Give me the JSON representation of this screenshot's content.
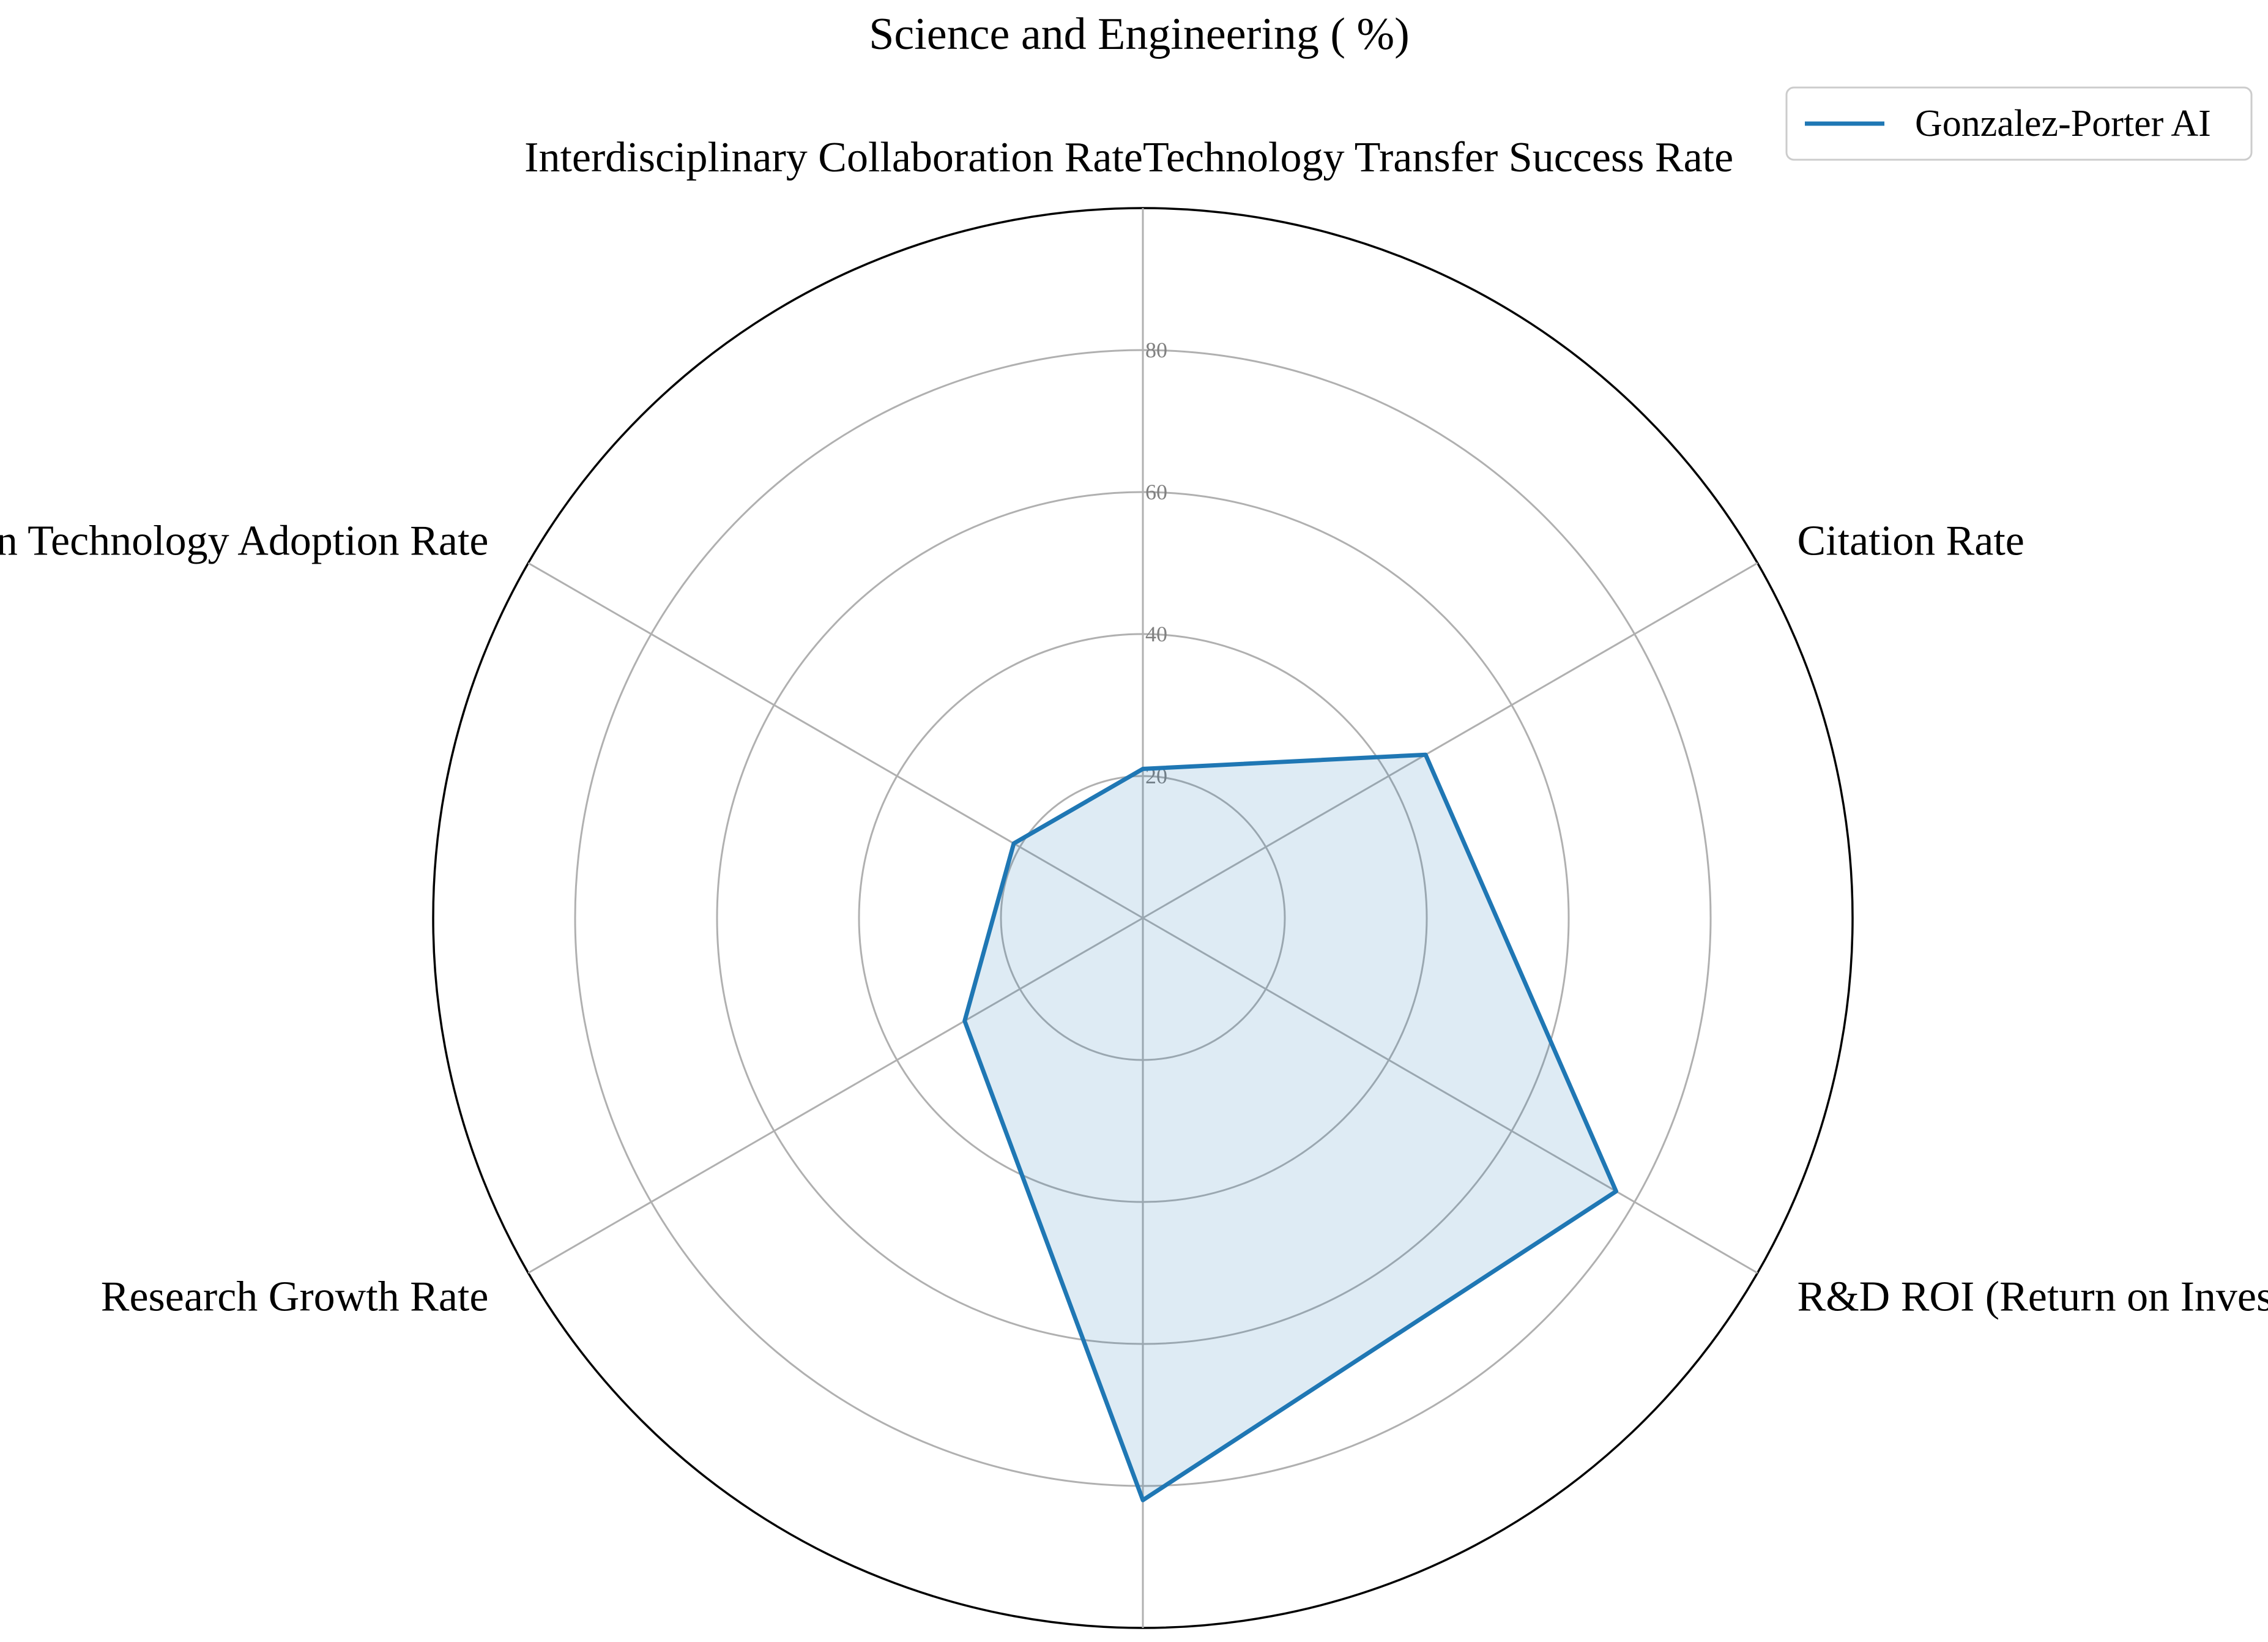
{
  "chart_data": {
    "type": "radar",
    "title": "Science and Engineering ( %)",
    "categories": [
      "Technology Transfer Success Rate",
      "Citation Rate",
      "R&D ROI (Return on Investment)",
      "Interdisciplinary Collaboration Rate",
      "Research Growth Rate",
      "Green Technology Adoption Rate"
    ],
    "series": [
      {
        "name": "Gonzalez-Porter AI",
        "values": [
          21,
          46,
          77,
          82,
          29,
          21
        ],
        "color": "#1f77b4",
        "fill": "#1f77b4",
        "fill_opacity": 0.15
      }
    ],
    "rlim": [
      0,
      100
    ],
    "rticks": [
      20,
      40,
      60,
      80
    ],
    "grid": true,
    "legend": "top-right",
    "colors": {
      "grid": "#b0b0b0",
      "outer": "#000000",
      "tick_text": "#808080"
    }
  }
}
